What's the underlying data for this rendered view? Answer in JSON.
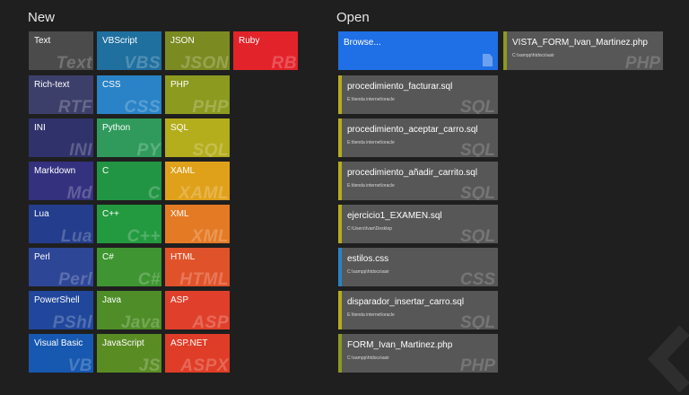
{
  "headings": {
    "new": "New",
    "open": "Open"
  },
  "new_tiles": [
    {
      "name": "Text",
      "abbr": "Text",
      "color": "#4b4b4b"
    },
    {
      "name": "VBScript",
      "abbr": "VBS",
      "color": "#1f6f9f"
    },
    {
      "name": "JSON",
      "abbr": "JSON",
      "color": "#7b8b21"
    },
    {
      "name": "Ruby",
      "abbr": "RB",
      "color": "#e3232a"
    },
    {
      "name": "Rich-text",
      "abbr": "RTF",
      "color": "#3d3f6b"
    },
    {
      "name": "CSS",
      "abbr": "CSS",
      "color": "#2983c6"
    },
    {
      "name": "PHP",
      "abbr": "PHP",
      "color": "#8c9a1f"
    },
    {
      "name": "INI",
      "abbr": "INI",
      "color": "#30336b"
    },
    {
      "name": "Python",
      "abbr": "PY",
      "color": "#2f9a5c"
    },
    {
      "name": "SQL",
      "abbr": "SQL",
      "color": "#b4ad1c"
    },
    {
      "name": "Markdown",
      "abbr": "Md",
      "color": "#34317f"
    },
    {
      "name": "C",
      "abbr": "C",
      "color": "#229544"
    },
    {
      "name": "XAML",
      "abbr": "XAML",
      "color": "#e0a11a"
    },
    {
      "name": "Lua",
      "abbr": "Lua",
      "color": "#243d8c"
    },
    {
      "name": "C++",
      "abbr": "C++",
      "color": "#239a3f"
    },
    {
      "name": "XML",
      "abbr": "XML",
      "color": "#e57a25"
    },
    {
      "name": "Perl",
      "abbr": "Perl",
      "color": "#2d4696"
    },
    {
      "name": "C#",
      "abbr": "C#",
      "color": "#3e9531"
    },
    {
      "name": "HTML",
      "abbr": "HTML",
      "color": "#e0532a"
    },
    {
      "name": "PowerShell",
      "abbr": "PShl",
      "color": "#20479b"
    },
    {
      "name": "Java",
      "abbr": "Java",
      "color": "#4e8d27"
    },
    {
      "name": "ASP",
      "abbr": "ASP",
      "color": "#e0402b"
    },
    {
      "name": "Visual Basic",
      "abbr": "VB",
      "color": "#1758b0"
    },
    {
      "name": "JavaScript",
      "abbr": "JS",
      "color": "#5a8c24"
    },
    {
      "name": "ASP.NET",
      "abbr": "ASPX",
      "color": "#df3d27"
    }
  ],
  "open": {
    "browse_label": "Browse...",
    "recent": [
      {
        "name": "procedimiento_facturar.sql",
        "path": "E:\\tienda internet\\oracle",
        "ext": "SQL",
        "color": "#b4ad1c"
      },
      {
        "name": "procedimiento_aceptar_carro.sql",
        "path": "E:\\tienda internet\\oracle",
        "ext": "SQL",
        "color": "#b4ad1c"
      },
      {
        "name": "procedimiento_añadir_carrito.sql",
        "path": "E:\\tienda internet\\oracle",
        "ext": "SQL",
        "color": "#b4ad1c"
      },
      {
        "name": "ejercicio1_EXAMEN.sql",
        "path": "C:\\Users\\Ivan\\Desktop",
        "ext": "SQL",
        "color": "#b4ad1c"
      },
      {
        "name": "estilos.css",
        "path": "C:\\xampp\\htdocs\\asir",
        "ext": "CSS",
        "color": "#2983c6"
      },
      {
        "name": "disparador_insertar_carro.sql",
        "path": "E:\\tienda internet\\oracle",
        "ext": "SQL",
        "color": "#b4ad1c"
      },
      {
        "name": "FORM_Ivan_Martinez.php",
        "path": "C:\\xampp\\htdocs\\asir",
        "ext": "PHP",
        "color": "#8c9a1f"
      },
      {
        "name": "VISTA_FORM_Ivan_Martinez.php",
        "path": "C:\\xampp\\htdocs\\asir",
        "ext": "PHP",
        "color": "#8c9a1f"
      }
    ]
  }
}
